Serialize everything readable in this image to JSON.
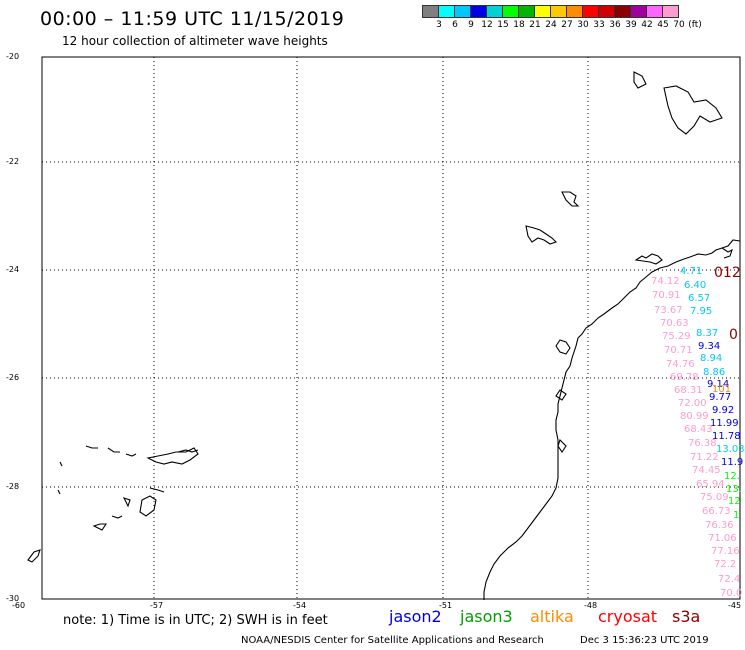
{
  "header": {
    "title": "00:00 – 11:59 UTC 11/15/2019",
    "subtitle": "12 hour collection of altimeter wave heights"
  },
  "legend": {
    "colors": [
      "#7f7f7f",
      "#00ffff",
      "#00c8ff",
      "#0000e6",
      "#00d2d2",
      "#00ff00",
      "#00b400",
      "#ffff00",
      "#ffc800",
      "#ff8c00",
      "#ff0000",
      "#d20000",
      "#8b0000",
      "#a000a0",
      "#ff64ff",
      "#ff9ccf",
      "#ffffff"
    ],
    "labels": [
      "3",
      "6",
      "9",
      "12",
      "15",
      "18",
      "21",
      "24",
      "27",
      "30",
      "33",
      "36",
      "39",
      "42",
      "45",
      "70",
      "(ft)"
    ]
  },
  "axes": {
    "y_ticks": [
      "-20",
      "-22",
      "-24",
      "-26",
      "-28",
      "-30"
    ],
    "x_ticks": [
      "-60",
      "-57",
      "-54",
      "-51",
      "-48",
      "-45"
    ]
  },
  "measurements": [
    {
      "text": "4.71",
      "color": "#00c8ff"
    },
    {
      "text": "6.40",
      "color": "#00c8ff"
    },
    {
      "text": "74.12",
      "color": "#ff9ccf"
    },
    {
      "text": "6.57",
      "color": "#00c8ff"
    },
    {
      "text": "70.91",
      "color": "#ff9ccf"
    },
    {
      "text": "7.95",
      "color": "#00c8ff"
    },
    {
      "text": "73.67",
      "color": "#ff9ccf"
    },
    {
      "text": "70.63",
      "color": "#ff9ccf"
    },
    {
      "text": "8.37",
      "color": "#00c8ff"
    },
    {
      "text": "75.29",
      "color": "#ff9ccf"
    },
    {
      "text": "9.34",
      "color": "#0000e6"
    },
    {
      "text": "70.71",
      "color": "#ff9ccf"
    },
    {
      "text": "8.94",
      "color": "#00c8ff"
    },
    {
      "text": "74.76",
      "color": "#ff9ccf"
    },
    {
      "text": "8.86",
      "color": "#00c8ff"
    },
    {
      "text": "69.78",
      "color": "#ff9ccf"
    },
    {
      "text": "9.14",
      "color": "#0000e6"
    },
    {
      "text": "68.31",
      "color": "#ff9ccf"
    },
    {
      "text": "9.77",
      "color": "#0000e6"
    },
    {
      "text": "72.00",
      "color": "#ff9ccf"
    },
    {
      "text": "9.92",
      "color": "#0000e6"
    },
    {
      "text": "80.99",
      "color": "#ff9ccf"
    },
    {
      "text": "11.99",
      "color": "#0000e6"
    },
    {
      "text": "68.43",
      "color": "#ff9ccf"
    },
    {
      "text": "11.78",
      "color": "#0000e6"
    },
    {
      "text": "76.38",
      "color": "#ff9ccf"
    },
    {
      "text": "13.03",
      "color": "#00d2d2"
    },
    {
      "text": "71.22",
      "color": "#ff9ccf"
    },
    {
      "text": "11.9",
      "color": "#0000e6"
    },
    {
      "text": "74.45",
      "color": "#ff9ccf"
    },
    {
      "text": "12.",
      "color": "#00ff00"
    },
    {
      "text": "65.94",
      "color": "#ff9ccf"
    },
    {
      "text": "13.",
      "color": "#00ff00"
    },
    {
      "text": "75.09",
      "color": "#ff9ccf"
    },
    {
      "text": "12",
      "color": "#00ff00"
    },
    {
      "text": "66.73",
      "color": "#ff9ccf"
    },
    {
      "text": "1",
      "color": "#00ff00"
    },
    {
      "text": "76.36",
      "color": "#ff9ccf"
    },
    {
      "text": "71.06",
      "color": "#ff9ccf"
    },
    {
      "text": "77.16",
      "color": "#ff9ccf"
    },
    {
      "text": "72.2",
      "color": "#ff9ccf"
    },
    {
      "text": "72.4",
      "color": "#ff9ccf"
    },
    {
      "text": "70.0",
      "color": "#ff9ccf"
    },
    {
      "text": "012",
      "color": "#8b0000"
    },
    {
      "text": "0",
      "color": "#8b0000"
    },
    {
      "text": "101",
      "color": "#ff8c00"
    }
  ],
  "footer": {
    "note": "note: 1) Time is in UTC; 2) SWH is in feet",
    "satellites": [
      {
        "name": "jason2",
        "color": "#0000e6"
      },
      {
        "name": "jason3",
        "color": "#00a000"
      },
      {
        "name": "altika",
        "color": "#ff8c00"
      },
      {
        "name": "cryosat",
        "color": "#ff0000"
      },
      {
        "name": "s3a",
        "color": "#8b0000"
      }
    ],
    "credit": "NOAA/NESDIS Center for Satellite Applications and Research",
    "timestamp": "Dec  3 15:36:23 UTC 2019"
  }
}
